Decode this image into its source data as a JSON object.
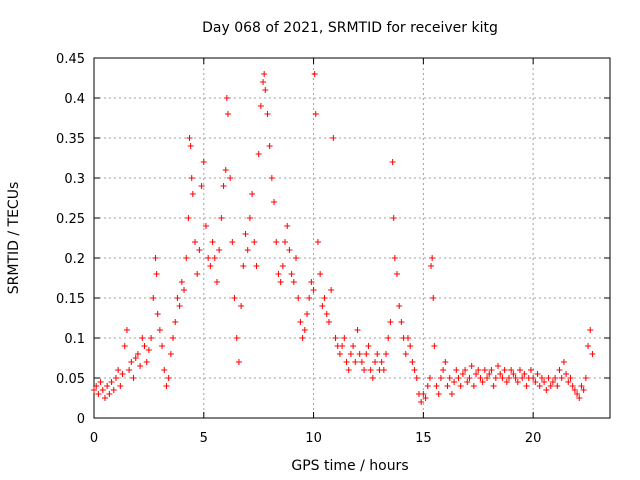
{
  "chart_data": {
    "type": "scatter",
    "title": "Day 068 of 2021, SRMTID for receiver kitg",
    "xlabel": "GPS time / hours",
    "ylabel": "SRMTID / TECUs",
    "xlim": [
      0,
      23.5
    ],
    "ylim": [
      0,
      0.45
    ],
    "xticks": [
      0,
      5,
      10,
      15,
      20
    ],
    "yticks": [
      0,
      0.05,
      0.1,
      0.15,
      0.2,
      0.25,
      0.3,
      0.35,
      0.4,
      0.45
    ],
    "xtick_labels": [
      "0",
      "5",
      "10",
      "15",
      "20"
    ],
    "ytick_labels": [
      "0",
      "0.05",
      "0.1",
      "0.15",
      "0.2",
      "0.25",
      "0.3",
      "0.35",
      "0.4",
      "0.45"
    ],
    "grid": true,
    "marker": "+",
    "color": "#ff0000",
    "series": [
      {
        "name": "SRMTID",
        "points": [
          [
            0.0,
            0.035
          ],
          [
            0.1,
            0.04
          ],
          [
            0.2,
            0.03
          ],
          [
            0.3,
            0.045
          ],
          [
            0.4,
            0.035
          ],
          [
            0.5,
            0.025
          ],
          [
            0.6,
            0.04
          ],
          [
            0.7,
            0.03
          ],
          [
            0.8,
            0.045
          ],
          [
            0.9,
            0.035
          ],
          [
            1.0,
            0.05
          ],
          [
            1.1,
            0.06
          ],
          [
            1.2,
            0.04
          ],
          [
            1.3,
            0.055
          ],
          [
            1.4,
            0.09
          ],
          [
            1.5,
            0.11
          ],
          [
            1.6,
            0.06
          ],
          [
            1.7,
            0.07
          ],
          [
            1.8,
            0.05
          ],
          [
            1.9,
            0.075
          ],
          [
            2.0,
            0.08
          ],
          [
            2.1,
            0.065
          ],
          [
            2.2,
            0.1
          ],
          [
            2.3,
            0.09
          ],
          [
            2.4,
            0.07
          ],
          [
            2.5,
            0.085
          ],
          [
            2.6,
            0.1
          ],
          [
            2.7,
            0.15
          ],
          [
            2.8,
            0.2
          ],
          [
            2.85,
            0.18
          ],
          [
            2.9,
            0.13
          ],
          [
            3.0,
            0.11
          ],
          [
            3.1,
            0.09
          ],
          [
            3.2,
            0.06
          ],
          [
            3.3,
            0.04
          ],
          [
            3.4,
            0.05
          ],
          [
            3.5,
            0.08
          ],
          [
            3.6,
            0.1
          ],
          [
            3.7,
            0.12
          ],
          [
            3.8,
            0.15
          ],
          [
            3.9,
            0.14
          ],
          [
            4.0,
            0.17
          ],
          [
            4.1,
            0.16
          ],
          [
            4.2,
            0.2
          ],
          [
            4.3,
            0.25
          ],
          [
            4.35,
            0.35
          ],
          [
            4.4,
            0.34
          ],
          [
            4.45,
            0.3
          ],
          [
            4.5,
            0.28
          ],
          [
            4.6,
            0.22
          ],
          [
            4.7,
            0.18
          ],
          [
            4.8,
            0.21
          ],
          [
            4.9,
            0.29
          ],
          [
            5.0,
            0.32
          ],
          [
            5.1,
            0.24
          ],
          [
            5.2,
            0.2
          ],
          [
            5.3,
            0.19
          ],
          [
            5.4,
            0.22
          ],
          [
            5.5,
            0.2
          ],
          [
            5.6,
            0.17
          ],
          [
            5.7,
            0.21
          ],
          [
            5.8,
            0.25
          ],
          [
            5.9,
            0.29
          ],
          [
            6.0,
            0.31
          ],
          [
            6.05,
            0.4
          ],
          [
            6.1,
            0.38
          ],
          [
            6.2,
            0.3
          ],
          [
            6.3,
            0.22
          ],
          [
            6.4,
            0.15
          ],
          [
            6.5,
            0.1
          ],
          [
            6.6,
            0.07
          ],
          [
            6.7,
            0.14
          ],
          [
            6.8,
            0.19
          ],
          [
            6.9,
            0.23
          ],
          [
            7.0,
            0.21
          ],
          [
            7.1,
            0.25
          ],
          [
            7.2,
            0.28
          ],
          [
            7.3,
            0.22
          ],
          [
            7.4,
            0.19
          ],
          [
            7.5,
            0.33
          ],
          [
            7.6,
            0.39
          ],
          [
            7.7,
            0.42
          ],
          [
            7.75,
            0.43
          ],
          [
            7.8,
            0.41
          ],
          [
            7.9,
            0.38
          ],
          [
            8.0,
            0.34
          ],
          [
            8.1,
            0.3
          ],
          [
            8.2,
            0.27
          ],
          [
            8.3,
            0.22
          ],
          [
            8.4,
            0.18
          ],
          [
            8.5,
            0.17
          ],
          [
            8.6,
            0.19
          ],
          [
            8.7,
            0.22
          ],
          [
            8.8,
            0.24
          ],
          [
            8.9,
            0.21
          ],
          [
            9.0,
            0.18
          ],
          [
            9.1,
            0.17
          ],
          [
            9.2,
            0.2
          ],
          [
            9.3,
            0.15
          ],
          [
            9.4,
            0.12
          ],
          [
            9.5,
            0.1
          ],
          [
            9.6,
            0.11
          ],
          [
            9.7,
            0.13
          ],
          [
            9.8,
            0.15
          ],
          [
            9.9,
            0.17
          ],
          [
            10.0,
            0.16
          ],
          [
            10.05,
            0.43
          ],
          [
            10.1,
            0.38
          ],
          [
            10.2,
            0.22
          ],
          [
            10.3,
            0.18
          ],
          [
            10.4,
            0.14
          ],
          [
            10.5,
            0.15
          ],
          [
            10.6,
            0.13
          ],
          [
            10.7,
            0.12
          ],
          [
            10.8,
            0.16
          ],
          [
            10.9,
            0.35
          ],
          [
            11.0,
            0.1
          ],
          [
            11.1,
            0.09
          ],
          [
            11.2,
            0.08
          ],
          [
            11.3,
            0.09
          ],
          [
            11.4,
            0.1
          ],
          [
            11.5,
            0.07
          ],
          [
            11.6,
            0.06
          ],
          [
            11.7,
            0.08
          ],
          [
            11.8,
            0.09
          ],
          [
            11.9,
            0.07
          ],
          [
            12.0,
            0.11
          ],
          [
            12.1,
            0.08
          ],
          [
            12.2,
            0.07
          ],
          [
            12.3,
            0.06
          ],
          [
            12.4,
            0.08
          ],
          [
            12.5,
            0.09
          ],
          [
            12.6,
            0.06
          ],
          [
            12.7,
            0.05
          ],
          [
            12.8,
            0.07
          ],
          [
            12.9,
            0.08
          ],
          [
            13.0,
            0.06
          ],
          [
            13.1,
            0.07
          ],
          [
            13.2,
            0.06
          ],
          [
            13.3,
            0.08
          ],
          [
            13.4,
            0.1
          ],
          [
            13.5,
            0.12
          ],
          [
            13.6,
            0.32
          ],
          [
            13.65,
            0.25
          ],
          [
            13.7,
            0.2
          ],
          [
            13.8,
            0.18
          ],
          [
            13.9,
            0.14
          ],
          [
            14.0,
            0.12
          ],
          [
            14.1,
            0.1
          ],
          [
            14.2,
            0.08
          ],
          [
            14.3,
            0.1
          ],
          [
            14.4,
            0.09
          ],
          [
            14.5,
            0.07
          ],
          [
            14.6,
            0.06
          ],
          [
            14.7,
            0.05
          ],
          [
            14.8,
            0.03
          ],
          [
            14.9,
            0.02
          ],
          [
            15.0,
            0.03
          ],
          [
            15.1,
            0.025
          ],
          [
            15.2,
            0.04
          ],
          [
            15.3,
            0.05
          ],
          [
            15.35,
            0.19
          ],
          [
            15.4,
            0.2
          ],
          [
            15.45,
            0.15
          ],
          [
            15.5,
            0.09
          ],
          [
            15.6,
            0.04
          ],
          [
            15.7,
            0.03
          ],
          [
            15.8,
            0.05
          ],
          [
            15.9,
            0.06
          ],
          [
            16.0,
            0.07
          ],
          [
            16.1,
            0.04
          ],
          [
            16.2,
            0.05
          ],
          [
            16.3,
            0.03
          ],
          [
            16.4,
            0.045
          ],
          [
            16.5,
            0.06
          ],
          [
            16.6,
            0.05
          ],
          [
            16.7,
            0.04
          ],
          [
            16.8,
            0.055
          ],
          [
            16.9,
            0.06
          ],
          [
            17.0,
            0.045
          ],
          [
            17.1,
            0.05
          ],
          [
            17.2,
            0.065
          ],
          [
            17.3,
            0.04
          ],
          [
            17.4,
            0.055
          ],
          [
            17.5,
            0.06
          ],
          [
            17.6,
            0.05
          ],
          [
            17.7,
            0.045
          ],
          [
            17.8,
            0.06
          ],
          [
            17.9,
            0.05
          ],
          [
            18.0,
            0.055
          ],
          [
            18.1,
            0.06
          ],
          [
            18.2,
            0.04
          ],
          [
            18.3,
            0.05
          ],
          [
            18.4,
            0.065
          ],
          [
            18.5,
            0.055
          ],
          [
            18.6,
            0.05
          ],
          [
            18.7,
            0.06
          ],
          [
            18.8,
            0.045
          ],
          [
            18.9,
            0.05
          ],
          [
            19.0,
            0.06
          ],
          [
            19.1,
            0.055
          ],
          [
            19.2,
            0.05
          ],
          [
            19.3,
            0.045
          ],
          [
            19.4,
            0.06
          ],
          [
            19.5,
            0.05
          ],
          [
            19.6,
            0.055
          ],
          [
            19.7,
            0.04
          ],
          [
            19.8,
            0.05
          ],
          [
            19.9,
            0.06
          ],
          [
            20.0,
            0.05
          ],
          [
            20.1,
            0.045
          ],
          [
            20.2,
            0.055
          ],
          [
            20.3,
            0.04
          ],
          [
            20.4,
            0.05
          ],
          [
            20.5,
            0.045
          ],
          [
            20.6,
            0.035
          ],
          [
            20.7,
            0.05
          ],
          [
            20.8,
            0.04
          ],
          [
            20.9,
            0.045
          ],
          [
            21.0,
            0.05
          ],
          [
            21.1,
            0.04
          ],
          [
            21.2,
            0.06
          ],
          [
            21.3,
            0.05
          ],
          [
            21.4,
            0.07
          ],
          [
            21.5,
            0.055
          ],
          [
            21.6,
            0.045
          ],
          [
            21.7,
            0.05
          ],
          [
            21.8,
            0.04
          ],
          [
            21.9,
            0.035
          ],
          [
            22.0,
            0.03
          ],
          [
            22.1,
            0.025
          ],
          [
            22.2,
            0.04
          ],
          [
            22.3,
            0.035
          ],
          [
            22.4,
            0.05
          ],
          [
            22.5,
            0.09
          ],
          [
            22.6,
            0.11
          ],
          [
            22.7,
            0.08
          ]
        ]
      }
    ]
  }
}
